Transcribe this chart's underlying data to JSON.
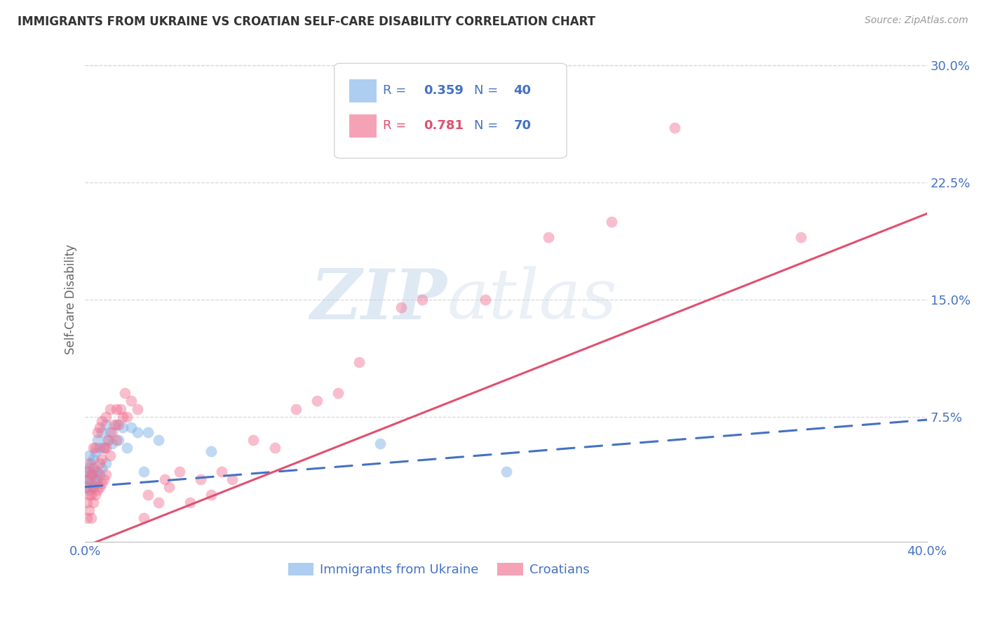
{
  "title": "IMMIGRANTS FROM UKRAINE VS CROATIAN SELF-CARE DISABILITY CORRELATION CHART",
  "source": "Source: ZipAtlas.com",
  "ylabel": "Self-Care Disability",
  "xlim": [
    0.0,
    0.4
  ],
  "ylim": [
    -0.005,
    0.305
  ],
  "xticks": [
    0.0,
    0.1,
    0.2,
    0.3,
    0.4
  ],
  "yticks": [
    0.0,
    0.075,
    0.15,
    0.225,
    0.3
  ],
  "yticklabels": [
    "",
    "7.5%",
    "15.0%",
    "22.5%",
    "30.0%"
  ],
  "blue_color": "#82B4E8",
  "pink_color": "#F07090",
  "blue_line_color": "#4472C4",
  "pink_line_color": "#E05070",
  "tick_label_color": "#4472C4",
  "grid_color": "#d8d8d8",
  "background_color": "#ffffff",
  "watermark": "ZIPatlas",
  "legend_label_blue": "Immigrants from Ukraine",
  "legend_label_pink": "Croatians",
  "blue_R": "0.359",
  "blue_N": "40",
  "pink_R": "0.781",
  "pink_N": "70",
  "blue_scatter_x": [
    0.001,
    0.001,
    0.001,
    0.002,
    0.002,
    0.002,
    0.002,
    0.003,
    0.003,
    0.003,
    0.004,
    0.004,
    0.004,
    0.005,
    0.005,
    0.005,
    0.006,
    0.006,
    0.007,
    0.007,
    0.008,
    0.008,
    0.009,
    0.01,
    0.01,
    0.011,
    0.012,
    0.013,
    0.015,
    0.016,
    0.018,
    0.02,
    0.022,
    0.025,
    0.028,
    0.03,
    0.035,
    0.06,
    0.14,
    0.2
  ],
  "blue_scatter_y": [
    0.03,
    0.035,
    0.04,
    0.028,
    0.035,
    0.042,
    0.05,
    0.032,
    0.038,
    0.045,
    0.03,
    0.038,
    0.048,
    0.033,
    0.04,
    0.052,
    0.035,
    0.06,
    0.038,
    0.055,
    0.042,
    0.065,
    0.055,
    0.045,
    0.07,
    0.06,
    0.065,
    0.058,
    0.07,
    0.06,
    0.068,
    0.055,
    0.068,
    0.065,
    0.04,
    0.065,
    0.06,
    0.053,
    0.058,
    0.04
  ],
  "pink_scatter_x": [
    0.001,
    0.001,
    0.001,
    0.001,
    0.002,
    0.002,
    0.002,
    0.002,
    0.003,
    0.003,
    0.003,
    0.004,
    0.004,
    0.004,
    0.004,
    0.005,
    0.005,
    0.005,
    0.006,
    0.006,
    0.006,
    0.007,
    0.007,
    0.007,
    0.008,
    0.008,
    0.008,
    0.009,
    0.009,
    0.01,
    0.01,
    0.01,
    0.011,
    0.012,
    0.012,
    0.013,
    0.014,
    0.015,
    0.015,
    0.016,
    0.017,
    0.018,
    0.019,
    0.02,
    0.022,
    0.025,
    0.028,
    0.03,
    0.035,
    0.038,
    0.04,
    0.045,
    0.05,
    0.055,
    0.06,
    0.065,
    0.07,
    0.08,
    0.09,
    0.1,
    0.11,
    0.12,
    0.13,
    0.15,
    0.16,
    0.19,
    0.22,
    0.25,
    0.28,
    0.34
  ],
  "pink_scatter_y": [
    0.01,
    0.02,
    0.03,
    0.04,
    0.015,
    0.025,
    0.035,
    0.045,
    0.01,
    0.025,
    0.038,
    0.02,
    0.03,
    0.042,
    0.055,
    0.025,
    0.035,
    0.055,
    0.028,
    0.04,
    0.065,
    0.03,
    0.045,
    0.068,
    0.032,
    0.048,
    0.072,
    0.035,
    0.055,
    0.038,
    0.055,
    0.075,
    0.06,
    0.05,
    0.08,
    0.065,
    0.07,
    0.06,
    0.08,
    0.07,
    0.08,
    0.075,
    0.09,
    0.075,
    0.085,
    0.08,
    0.01,
    0.025,
    0.02,
    0.035,
    0.03,
    0.04,
    0.02,
    0.035,
    0.025,
    0.04,
    0.035,
    0.06,
    0.055,
    0.08,
    0.085,
    0.09,
    0.11,
    0.145,
    0.15,
    0.15,
    0.19,
    0.2,
    0.26,
    0.19
  ]
}
